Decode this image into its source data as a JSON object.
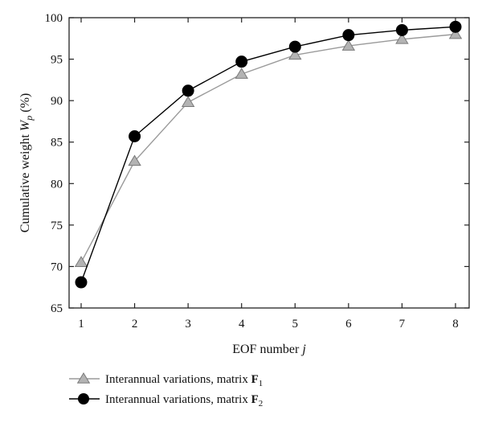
{
  "chart_data": {
    "type": "line",
    "x": [
      1,
      2,
      3,
      4,
      5,
      6,
      7,
      8
    ],
    "series": [
      {
        "name": "Interannual variations, matrix F1",
        "label_text": "Interannual variations, matrix ",
        "matrix": "F",
        "subscript": "1",
        "marker": "triangle",
        "color": "#9a9a9a",
        "values": [
          70.5,
          82.7,
          89.8,
          93.2,
          95.5,
          96.6,
          97.4,
          98.0
        ]
      },
      {
        "name": "Interannual variations, matrix F2",
        "label_text": "Interannual variations, matrix ",
        "matrix": "F",
        "subscript": "2",
        "marker": "circle",
        "color": "#000000",
        "values": [
          68.1,
          85.7,
          91.2,
          94.7,
          96.5,
          97.9,
          98.5,
          98.9
        ]
      }
    ],
    "xlabel": {
      "text": "EOF number ",
      "var": "j"
    },
    "ylabel": {
      "text": "Cumulative weight ",
      "var": "W",
      "sub": "p",
      "unit": " (%)"
    },
    "xlim": [
      1,
      8
    ],
    "ylim": [
      65,
      100
    ],
    "xticks": [
      "1",
      "2",
      "3",
      "4",
      "5",
      "6",
      "7",
      "8"
    ],
    "yticks": [
      "65",
      "70",
      "75",
      "80",
      "85",
      "90",
      "95",
      "100"
    ],
    "grid": false,
    "legend_position": "bottom-left, below plot"
  }
}
